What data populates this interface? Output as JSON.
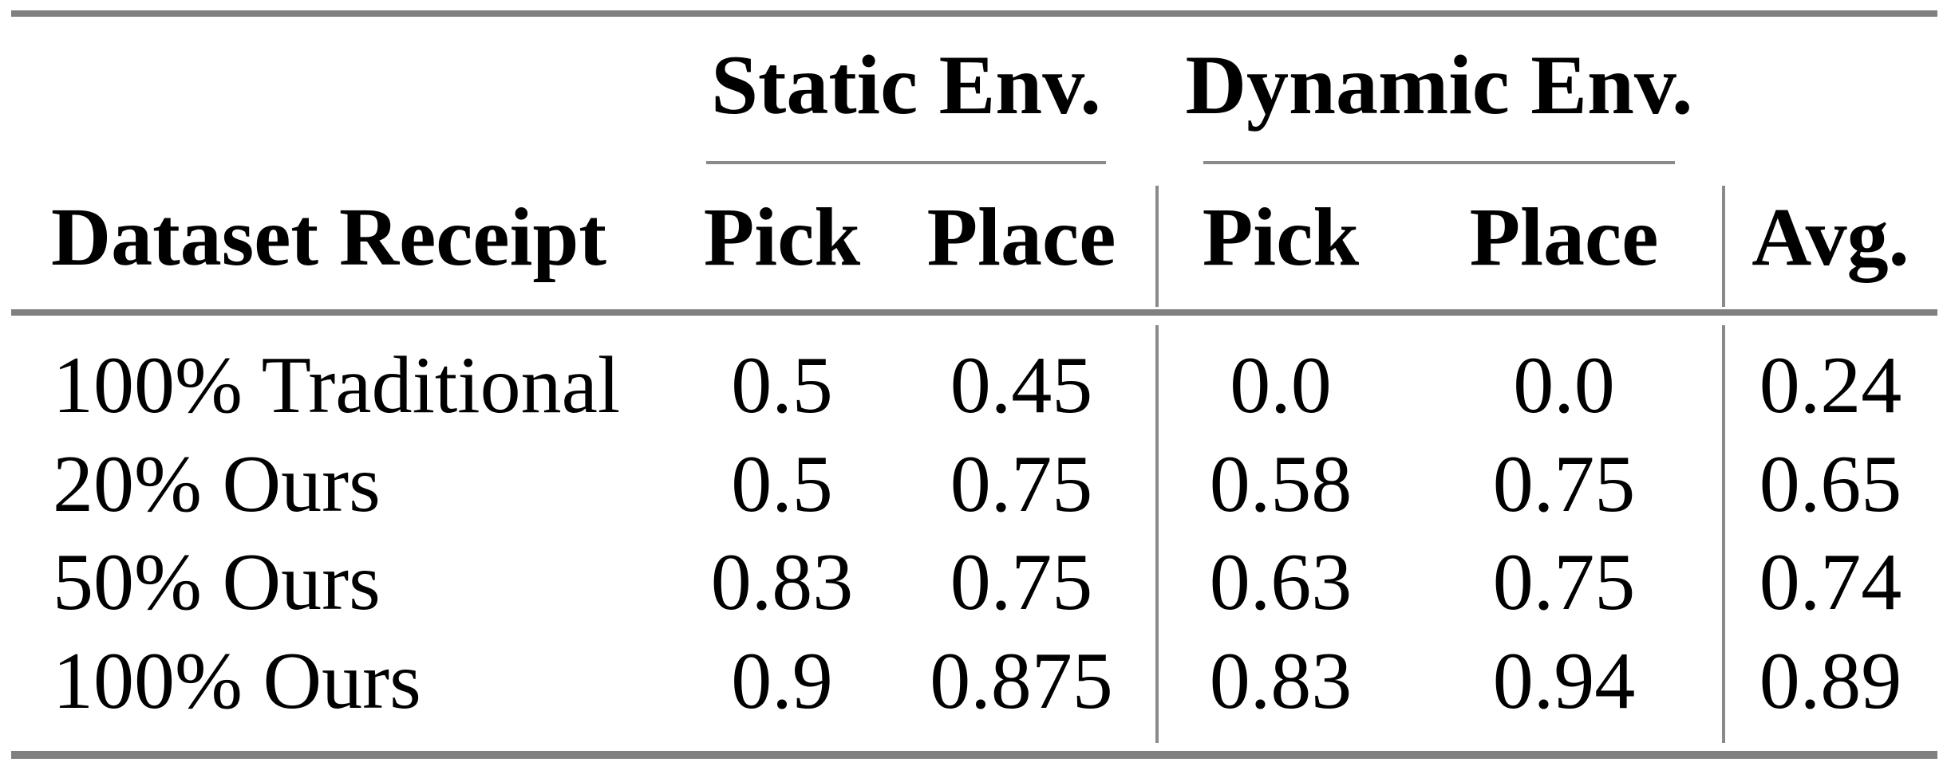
{
  "table": {
    "group_header": {
      "static": "Static Env.",
      "dynamic": "Dynamic Env."
    },
    "columns": {
      "dataset": "Dataset Receipt",
      "static_pick": "Pick",
      "static_place": "Place",
      "dynamic_pick": "Pick",
      "dynamic_place": "Place",
      "avg": "Avg."
    },
    "rows": [
      {
        "dataset": "100% Traditional",
        "static_pick": "0.5",
        "static_place": "0.45",
        "dynamic_pick": "0.0",
        "dynamic_place": "0.0",
        "avg": "0.24"
      },
      {
        "dataset": "20% Ours",
        "static_pick": "0.5",
        "static_place": "0.75",
        "dynamic_pick": "0.58",
        "dynamic_place": "0.75",
        "avg": "0.65"
      },
      {
        "dataset": "50% Ours",
        "static_pick": "0.83",
        "static_place": "0.75",
        "dynamic_pick": "0.63",
        "dynamic_place": "0.75",
        "avg": "0.74"
      },
      {
        "dataset": "100% Ours",
        "static_pick": "0.9",
        "static_place": "0.875",
        "dynamic_pick": "0.83",
        "dynamic_place": "0.94",
        "avg": "0.89"
      }
    ],
    "colors": {
      "thick_rule": "#808080",
      "thin_rule": "#8a8a8a",
      "text": "#000000",
      "background": "#ffffff"
    }
  }
}
